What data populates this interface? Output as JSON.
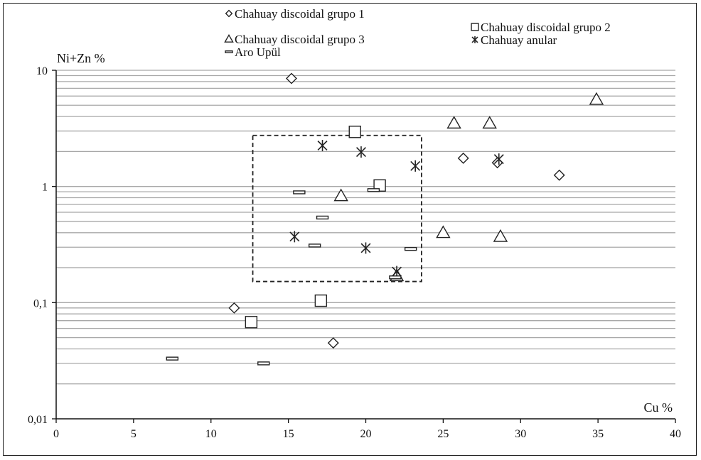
{
  "chart_data": {
    "type": "scatter",
    "xlabel": "Cu %",
    "ylabel": "Ni+Zn %",
    "xlim": [
      0,
      40
    ],
    "ylim": [
      0.01,
      10
    ],
    "y_scale": "log",
    "grid": "horizontal",
    "legend_position": "top",
    "x_ticks": [
      "0",
      "5",
      "10",
      "15",
      "20",
      "25",
      "30",
      "35",
      "40"
    ],
    "y_ticks": [
      {
        "value": 10,
        "label": "10"
      },
      {
        "value": 1,
        "label": "1"
      },
      {
        "value": 0.1,
        "label": "0,1"
      },
      {
        "value": 0.01,
        "label": "0,01"
      }
    ],
    "series": [
      {
        "name": "Chahuay discoidal grupo 1",
        "marker": "diamond",
        "points": [
          [
            15.2,
            8.5
          ],
          [
            26.3,
            1.75
          ],
          [
            28.5,
            1.6
          ],
          [
            32.5,
            1.25
          ],
          [
            11.5,
            0.09
          ],
          [
            17.9,
            0.045
          ]
        ]
      },
      {
        "name": "Chahuay discoidal grupo 2",
        "marker": "square",
        "points": [
          [
            19.3,
            2.95
          ],
          [
            20.9,
            1.02
          ],
          [
            17.1,
            0.104
          ],
          [
            12.6,
            0.068
          ]
        ]
      },
      {
        "name": "Chahuay discoidal grupo 3",
        "marker": "triangle",
        "points": [
          [
            34.9,
            5.6
          ],
          [
            25.7,
            3.5
          ],
          [
            28.0,
            3.5
          ],
          [
            18.4,
            0.83
          ],
          [
            25.0,
            0.4
          ],
          [
            28.7,
            0.37
          ],
          [
            22.0,
            0.17
          ]
        ]
      },
      {
        "name": "Chahuay anular",
        "marker": "asterisk",
        "points": [
          [
            17.2,
            2.25
          ],
          [
            19.7,
            1.98
          ],
          [
            28.6,
            1.72
          ],
          [
            23.2,
            1.5
          ],
          [
            15.4,
            0.37
          ],
          [
            20.0,
            0.295
          ],
          [
            22.0,
            0.185
          ]
        ]
      },
      {
        "name": "Aro Upül",
        "marker": "dash",
        "points": [
          [
            15.7,
            0.89
          ],
          [
            20.5,
            0.93
          ],
          [
            17.2,
            0.54
          ],
          [
            16.7,
            0.31
          ],
          [
            22.9,
            0.29
          ],
          [
            21.9,
            0.165
          ],
          [
            7.5,
            0.033
          ],
          [
            13.4,
            0.03
          ]
        ]
      }
    ],
    "highlight_box": {
      "x": [
        12.7,
        23.6
      ],
      "y": [
        0.152,
        2.75
      ],
      "style": "dashed"
    }
  }
}
